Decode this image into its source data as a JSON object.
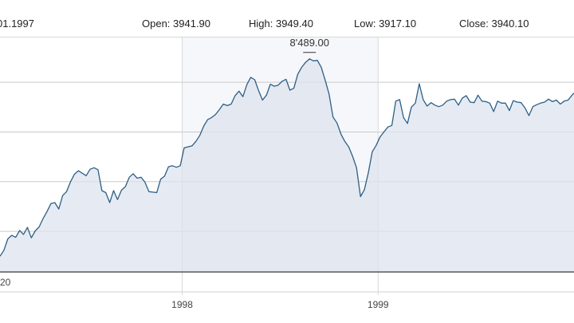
{
  "header": {
    "date": "01.1997",
    "open": "Open: 3941.90",
    "high": "High: 3949.40",
    "low": "Low: 3917.10",
    "close": "Close: 3940.10"
  },
  "chart_data": {
    "type": "area",
    "title": "",
    "xlabel": "",
    "ylabel": "",
    "x_ticks": [
      "1998",
      "1999"
    ],
    "y_ticks": [],
    "bottom_label": "20",
    "annotation": "8'489.00",
    "ylim": [
      4200,
      8900
    ],
    "x_range": [
      1997.07,
      2000.0
    ],
    "grid": true,
    "series": [
      {
        "points": [
          [
            1997.07,
            4500
          ],
          [
            1997.09,
            4620
          ],
          [
            1997.11,
            4850
          ],
          [
            1997.13,
            4920
          ],
          [
            1997.15,
            4880
          ],
          [
            1997.17,
            5020
          ],
          [
            1997.19,
            4940
          ],
          [
            1997.21,
            5080
          ],
          [
            1997.23,
            4870
          ],
          [
            1997.25,
            5010
          ],
          [
            1997.27,
            5090
          ],
          [
            1997.29,
            5260
          ],
          [
            1997.31,
            5400
          ],
          [
            1997.33,
            5560
          ],
          [
            1997.35,
            5580
          ],
          [
            1997.37,
            5450
          ],
          [
            1997.39,
            5720
          ],
          [
            1997.41,
            5800
          ],
          [
            1997.43,
            6000
          ],
          [
            1997.45,
            6150
          ],
          [
            1997.47,
            6220
          ],
          [
            1997.49,
            6170
          ],
          [
            1997.51,
            6120
          ],
          [
            1997.53,
            6250
          ],
          [
            1997.55,
            6280
          ],
          [
            1997.57,
            6240
          ],
          [
            1997.59,
            5820
          ],
          [
            1997.61,
            5780
          ],
          [
            1997.63,
            5580
          ],
          [
            1997.65,
            5820
          ],
          [
            1997.67,
            5640
          ],
          [
            1997.69,
            5830
          ],
          [
            1997.71,
            5900
          ],
          [
            1997.73,
            6090
          ],
          [
            1997.75,
            6160
          ],
          [
            1997.77,
            6070
          ],
          [
            1997.79,
            6090
          ],
          [
            1997.81,
            5990
          ],
          [
            1997.83,
            5800
          ],
          [
            1997.85,
            5790
          ],
          [
            1997.87,
            5780
          ],
          [
            1997.89,
            6050
          ],
          [
            1997.91,
            6110
          ],
          [
            1997.93,
            6300
          ],
          [
            1997.95,
            6320
          ],
          [
            1997.97,
            6290
          ],
          [
            1997.99,
            6320
          ],
          [
            1998.01,
            6680
          ],
          [
            1998.03,
            6700
          ],
          [
            1998.05,
            6720
          ],
          [
            1998.07,
            6810
          ],
          [
            1998.09,
            6930
          ],
          [
            1998.11,
            7120
          ],
          [
            1998.13,
            7250
          ],
          [
            1998.15,
            7290
          ],
          [
            1998.17,
            7350
          ],
          [
            1998.19,
            7450
          ],
          [
            1998.21,
            7560
          ],
          [
            1998.23,
            7530
          ],
          [
            1998.25,
            7560
          ],
          [
            1998.27,
            7730
          ],
          [
            1998.29,
            7820
          ],
          [
            1998.31,
            7710
          ],
          [
            1998.33,
            7950
          ],
          [
            1998.35,
            8100
          ],
          [
            1998.37,
            8050
          ],
          [
            1998.39,
            7830
          ],
          [
            1998.41,
            7640
          ],
          [
            1998.43,
            7740
          ],
          [
            1998.45,
            7960
          ],
          [
            1998.47,
            7920
          ],
          [
            1998.49,
            7940
          ],
          [
            1998.51,
            8020
          ],
          [
            1998.53,
            8060
          ],
          [
            1998.55,
            7840
          ],
          [
            1998.57,
            7880
          ],
          [
            1998.59,
            8160
          ],
          [
            1998.61,
            8300
          ],
          [
            1998.63,
            8400
          ],
          [
            1998.65,
            8470
          ],
          [
            1998.67,
            8430
          ],
          [
            1998.69,
            8440
          ],
          [
            1998.71,
            8300
          ],
          [
            1998.73,
            8040
          ],
          [
            1998.75,
            7760
          ],
          [
            1998.77,
            7300
          ],
          [
            1998.79,
            7180
          ],
          [
            1998.81,
            6960
          ],
          [
            1998.83,
            6810
          ],
          [
            1998.85,
            6700
          ],
          [
            1998.87,
            6510
          ],
          [
            1998.89,
            6280
          ],
          [
            1998.91,
            5700
          ],
          [
            1998.93,
            5840
          ],
          [
            1998.95,
            6180
          ],
          [
            1998.97,
            6600
          ],
          [
            1998.99,
            6730
          ],
          [
            1999.01,
            6900
          ],
          [
            1999.03,
            7000
          ],
          [
            1999.05,
            7100
          ],
          [
            1999.07,
            7130
          ],
          [
            1999.09,
            7620
          ],
          [
            1999.11,
            7650
          ],
          [
            1999.13,
            7290
          ],
          [
            1999.15,
            7170
          ],
          [
            1999.17,
            7500
          ],
          [
            1999.19,
            7580
          ],
          [
            1999.21,
            7970
          ],
          [
            1999.23,
            7650
          ],
          [
            1999.25,
            7520
          ],
          [
            1999.27,
            7590
          ],
          [
            1999.29,
            7540
          ],
          [
            1999.31,
            7510
          ],
          [
            1999.33,
            7540
          ],
          [
            1999.35,
            7620
          ],
          [
            1999.37,
            7650
          ],
          [
            1999.39,
            7660
          ],
          [
            1999.41,
            7540
          ],
          [
            1999.43,
            7680
          ],
          [
            1999.45,
            7730
          ],
          [
            1999.47,
            7600
          ],
          [
            1999.49,
            7590
          ],
          [
            1999.51,
            7740
          ],
          [
            1999.53,
            7620
          ],
          [
            1999.55,
            7610
          ],
          [
            1999.57,
            7580
          ],
          [
            1999.59,
            7410
          ],
          [
            1999.61,
            7620
          ],
          [
            1999.63,
            7580
          ],
          [
            1999.65,
            7580
          ],
          [
            1999.67,
            7430
          ],
          [
            1999.69,
            7630
          ],
          [
            1999.71,
            7600
          ],
          [
            1999.73,
            7590
          ],
          [
            1999.75,
            7480
          ],
          [
            1999.77,
            7330
          ],
          [
            1999.79,
            7510
          ],
          [
            1999.81,
            7550
          ],
          [
            1999.83,
            7580
          ],
          [
            1999.85,
            7600
          ],
          [
            1999.87,
            7660
          ],
          [
            1999.89,
            7610
          ],
          [
            1999.91,
            7640
          ],
          [
            1999.93,
            7560
          ],
          [
            1999.95,
            7620
          ],
          [
            1999.97,
            7640
          ],
          [
            1999.99,
            7740
          ],
          [
            2000.0,
            7780
          ]
        ]
      }
    ]
  },
  "colors": {
    "line": "#2c5f86",
    "fill": "#dde3ee",
    "band": "#e9edf6",
    "grid": "#c9c9c9"
  }
}
